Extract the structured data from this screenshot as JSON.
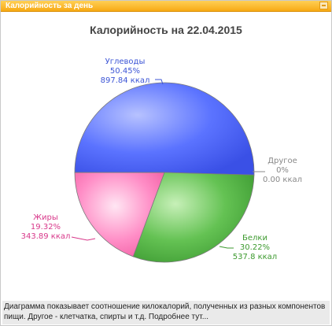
{
  "panel": {
    "title": "Калорийность за день"
  },
  "footer": {
    "text": "Диаграмма показывает соотношение килокалорий, полученных из разных компонентов пищи. Другое - клетчатка, спирты и т.д.",
    "link_label": "Подробнее тут..."
  },
  "chart_data": {
    "type": "pie",
    "title": "Калорийность на 22.04.2015",
    "slices": [
      {
        "name": "Углеводы",
        "percent_label": "50.45%",
        "value_label": "897.84 ккал",
        "percent": 50.45,
        "color": "#4a63f0"
      },
      {
        "name": "Другое",
        "percent_label": "0%",
        "value_label": "0.00 ккал",
        "percent": 0,
        "color": "#999999"
      },
      {
        "name": "Белки",
        "percent_label": "30.22%",
        "value_label": "537.8 ккал",
        "percent": 30.22,
        "color": "#55b847"
      },
      {
        "name": "Жиры",
        "percent_label": "19.32%",
        "value_label": "343.89 ккал",
        "percent": 19.32,
        "color": "#f05aa8"
      }
    ],
    "label_colors": {
      "Углеводы": "#3c55d6",
      "Другое": "#888888",
      "Белки": "#3d9a2f",
      "Жиры": "#d8388a"
    }
  }
}
